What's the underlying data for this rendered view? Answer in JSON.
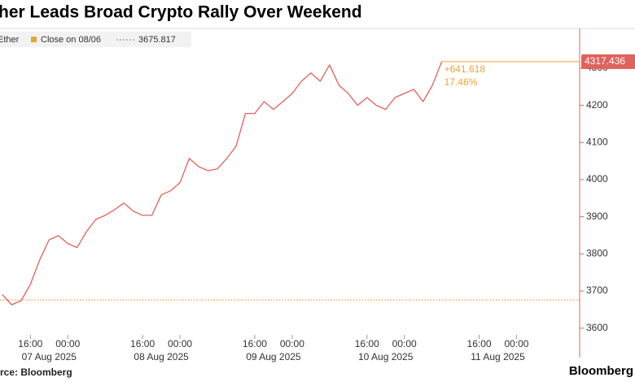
{
  "chart_data": {
    "type": "line",
    "title": "her Leads Broad Crypto Rally Over Weekend",
    "source": "rce: Bloomberg",
    "brand": "Bloomberg",
    "x": [
      "2025-08-07 10:00",
      "2025-08-07 12:00",
      "2025-08-07 14:00",
      "2025-08-07 16:00",
      "2025-08-07 18:00",
      "2025-08-07 20:00",
      "2025-08-07 22:00",
      "2025-08-08 00:00",
      "2025-08-08 02:00",
      "2025-08-08 04:00",
      "2025-08-08 06:00",
      "2025-08-08 08:00",
      "2025-08-08 10:00",
      "2025-08-08 12:00",
      "2025-08-08 14:00",
      "2025-08-08 16:00",
      "2025-08-08 18:00",
      "2025-08-08 20:00",
      "2025-08-08 22:00",
      "2025-08-09 00:00",
      "2025-08-09 02:00",
      "2025-08-09 04:00",
      "2025-08-09 06:00",
      "2025-08-09 08:00",
      "2025-08-09 10:00",
      "2025-08-09 12:00",
      "2025-08-09 14:00",
      "2025-08-09 16:00",
      "2025-08-09 18:00",
      "2025-08-09 20:00",
      "2025-08-09 22:00",
      "2025-08-10 00:00",
      "2025-08-10 02:00",
      "2025-08-10 04:00",
      "2025-08-10 06:00",
      "2025-08-10 08:00",
      "2025-08-10 10:00",
      "2025-08-10 12:00",
      "2025-08-10 14:00",
      "2025-08-10 16:00",
      "2025-08-10 18:00",
      "2025-08-10 20:00",
      "2025-08-10 22:00",
      "2025-08-11 00:00",
      "2025-08-11 02:00",
      "2025-08-11 04:00",
      "2025-08-11 06:00",
      "2025-08-11 08:00"
    ],
    "series": [
      {
        "name": "Ether",
        "color": "#e0625c",
        "values": [
          3690,
          3663,
          3674,
          3718,
          3784,
          3838,
          3849,
          3828,
          3817,
          3860,
          3893,
          3904,
          3919,
          3937,
          3915,
          3904,
          3904,
          3959,
          3970,
          3992,
          4057,
          4035,
          4024,
          4029,
          4057,
          4090,
          4178,
          4178,
          4210,
          4189,
          4210,
          4232,
          4265,
          4287,
          4265,
          4309,
          4254,
          4232,
          4200,
          4221,
          4200,
          4189,
          4221,
          4232,
          4243,
          4210,
          4254,
          4317.436
        ]
      }
    ],
    "close": {
      "label": "Close on 08/06",
      "value": 3675.817,
      "color": "#e8a43a"
    },
    "change_labels": [
      "+641.618",
      "17.46%"
    ],
    "xlim": [
      "2025-08-07 09:30",
      "2025-08-12 13:30"
    ],
    "xticks": [
      {
        "value": "2025-08-07 16:00",
        "label": "16:00"
      },
      {
        "value": "2025-08-08 00:00",
        "label": "00:00"
      },
      {
        "value": "2025-08-08 16:00",
        "label": "16:00"
      },
      {
        "value": "2025-08-09 00:00",
        "label": "00:00"
      },
      {
        "value": "2025-08-09 16:00",
        "label": "16:00"
      },
      {
        "value": "2025-08-10 00:00",
        "label": "00:00"
      },
      {
        "value": "2025-08-10 16:00",
        "label": "16:00"
      },
      {
        "value": "2025-08-11 00:00",
        "label": "00:00"
      },
      {
        "value": "2025-08-11 16:00",
        "label": "16:00"
      },
      {
        "value": "2025-08-12 00:00",
        "label": "00:00"
      }
    ],
    "x_date_labels": [
      "07 Aug 2025",
      "08 Aug 2025",
      "09 Aug 2025",
      "10 Aug 2025",
      "11 Aug 2025"
    ],
    "ylim": [
      3582,
      4407
    ],
    "yticks": [
      3600,
      3700,
      3800,
      3900,
      4000,
      4100,
      4200,
      4300
    ],
    "axis_color": "#e0625c",
    "grid": false
  }
}
